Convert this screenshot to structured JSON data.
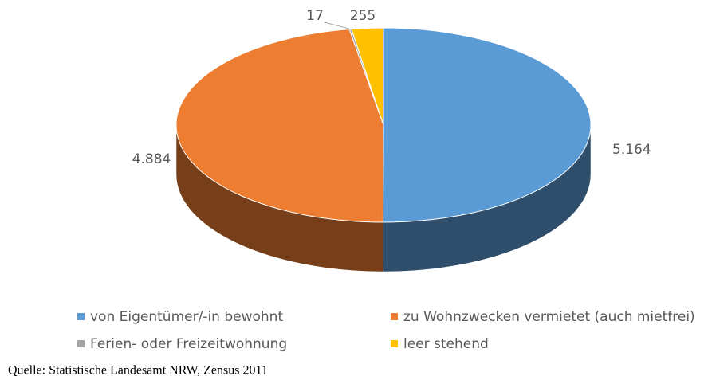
{
  "chart_data": {
    "type": "pie3d",
    "categories": [
      "von Eigentümer/-in bewohnt",
      "zu Wohnzwecken vermietet (auch mietfrei)",
      "Ferien- oder Freizeitwohnung",
      "leer stehend"
    ],
    "values": [
      5164,
      4884,
      17,
      255
    ],
    "value_labels": [
      "5.164",
      "4.884",
      "17",
      "255"
    ],
    "colors": [
      "#5b9bd5",
      "#ed7d31",
      "#a5a5a5",
      "#ffc000"
    ],
    "legend": "bottom",
    "source": "Quelle: Statistische Landesamt NRW, Zensus 2011"
  }
}
